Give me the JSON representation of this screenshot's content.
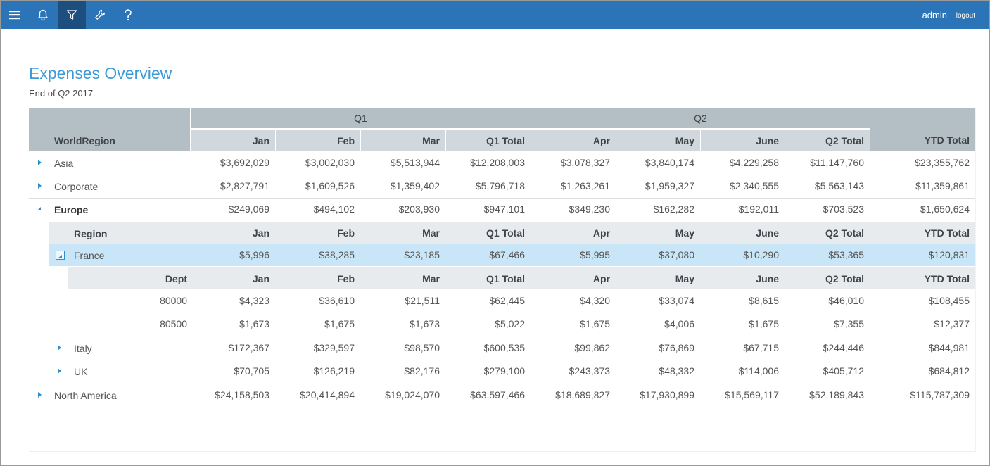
{
  "header": {
    "user": "admin",
    "logout": "logout"
  },
  "page": {
    "title": "Expenses Overview",
    "subtitle": "End of Q2 2017"
  },
  "columns": {
    "quarter_groups": [
      "Q1",
      "Q2"
    ],
    "row_header": "WorldRegion",
    "months": [
      "Jan",
      "Feb",
      "Mar",
      "Q1 Total",
      "Apr",
      "May",
      "June",
      "Q2 Total",
      "YTD Total"
    ]
  },
  "rows": [
    {
      "label": "Asia",
      "values": [
        "$3,692,029",
        "$3,002,030",
        "$5,513,944",
        "$12,208,003",
        "$3,078,327",
        "$3,840,174",
        "$4,229,258",
        "$11,147,760",
        "$23,355,762"
      ]
    },
    {
      "label": "Corporate",
      "values": [
        "$2,827,791",
        "$1,609,526",
        "$1,359,402",
        "$5,796,718",
        "$1,263,261",
        "$1,959,327",
        "$2,340,555",
        "$5,563,143",
        "$11,359,861"
      ]
    },
    {
      "label": "Europe",
      "values": [
        "$249,069",
        "$494,102",
        "$203,930",
        "$947,101",
        "$349,230",
        "$162,282",
        "$192,011",
        "$703,523",
        "$1,650,624"
      ]
    },
    {
      "label": "North America",
      "values": [
        "$24,158,503",
        "$20,414,894",
        "$19,024,070",
        "$63,597,466",
        "$18,689,827",
        "$17,930,899",
        "$15,569,117",
        "$52,189,843",
        "$115,787,309"
      ]
    }
  ],
  "europe_sub": {
    "header": [
      "Region",
      "Jan",
      "Feb",
      "Mar",
      "Q1 Total",
      "Apr",
      "May",
      "June",
      "Q2 Total",
      "YTD Total"
    ],
    "rows": [
      {
        "label": "France",
        "values": [
          "$5,996",
          "$38,285",
          "$23,185",
          "$67,466",
          "$5,995",
          "$37,080",
          "$10,290",
          "$53,365",
          "$120,831"
        ]
      },
      {
        "label": "Italy",
        "values": [
          "$172,367",
          "$329,597",
          "$98,570",
          "$600,535",
          "$99,862",
          "$76,869",
          "$67,715",
          "$244,446",
          "$844,981"
        ]
      },
      {
        "label": "UK",
        "values": [
          "$70,705",
          "$126,219",
          "$82,176",
          "$279,100",
          "$243,373",
          "$48,332",
          "$114,006",
          "$405,712",
          "$684,812"
        ]
      }
    ]
  },
  "france_sub": {
    "header": [
      "Dept",
      "Jan",
      "Feb",
      "Mar",
      "Q1 Total",
      "Apr",
      "May",
      "June",
      "Q2 Total",
      "YTD Total"
    ],
    "rows": [
      {
        "label": "80000",
        "values": [
          "$4,323",
          "$36,610",
          "$21,511",
          "$62,445",
          "$4,320",
          "$33,074",
          "$8,615",
          "$46,010",
          "$108,455"
        ]
      },
      {
        "label": "80500",
        "values": [
          "$1,673",
          "$1,675",
          "$1,673",
          "$5,022",
          "$1,675",
          "$4,006",
          "$1,675",
          "$7,355",
          "$12,377"
        ]
      }
    ]
  }
}
